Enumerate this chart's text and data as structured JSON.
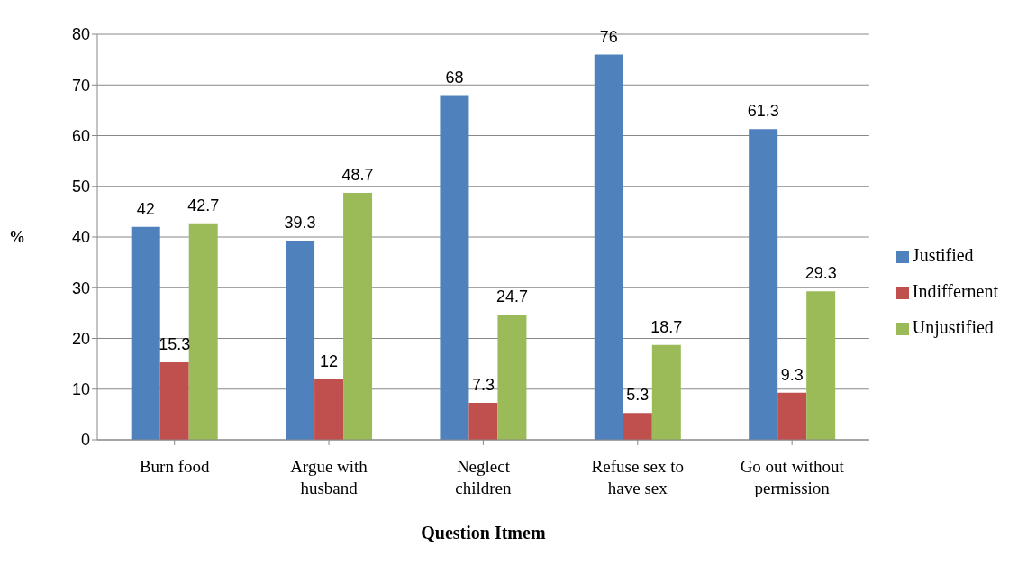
{
  "chart_data": {
    "type": "bar",
    "xlabel": "Question Itmem",
    "ylabel": "%",
    "categories": [
      "Burn food",
      "Argue with husband",
      "Neglect children",
      "Refuse sex to have sex",
      "Go out without permission"
    ],
    "series": [
      {
        "name": "Justified",
        "color": "#4f81bd",
        "values": [
          42,
          39.3,
          68,
          76,
          61.3
        ]
      },
      {
        "name": "Indiffernent",
        "color": "#c0504d",
        "values": [
          15.3,
          12,
          7.3,
          5.3,
          9.3
        ]
      },
      {
        "name": "Unjustified",
        "color": "#9bbb59",
        "values": [
          42.7,
          48.7,
          24.7,
          18.7,
          29.3
        ]
      }
    ],
    "ylim": [
      0,
      80
    ],
    "yticks": [
      0,
      10,
      20,
      30,
      40,
      50,
      60,
      70,
      80
    ],
    "grid": "y",
    "legend": "right",
    "data_labels": true
  }
}
